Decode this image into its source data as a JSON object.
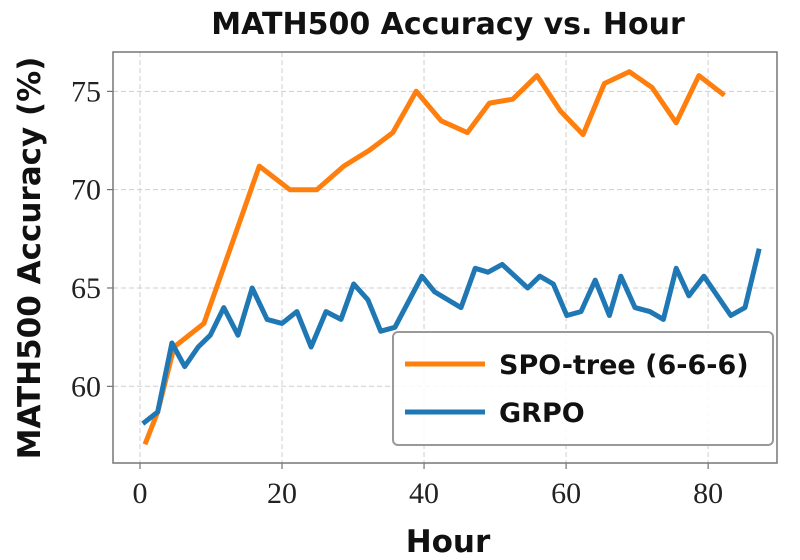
{
  "chart_data": {
    "type": "line",
    "title": "MATH500 Accuracy vs. Hour",
    "xlabel": "Hour",
    "ylabel": "MATH500 Accuracy (%)",
    "xlim": [
      -3.8,
      89.7
    ],
    "ylim": [
      56.1,
      77.0
    ],
    "xticks": [
      0,
      20,
      40,
      60,
      80
    ],
    "yticks": [
      60,
      65,
      70,
      75
    ],
    "grid": true,
    "legend": "lower right",
    "series": [
      {
        "name": "SPO-tree (6-6-6)",
        "color": "#ff7f0e",
        "x": [
          0.7,
          2.5,
          4.8,
          9.0,
          13.0,
          16.8,
          21.1,
          24.9,
          28.7,
          32.3,
          35.6,
          38.9,
          42.4,
          46.1,
          49.2,
          52.5,
          55.9,
          59.2,
          62.4,
          65.4,
          68.9,
          72.1,
          75.5,
          78.7,
          82.3
        ],
        "values": [
          57.05,
          58.7,
          62.0,
          63.2,
          67.3,
          71.2,
          70.0,
          70.0,
          71.2,
          72.0,
          72.9,
          75.0,
          73.5,
          72.9,
          74.4,
          74.6,
          75.8,
          74.0,
          72.8,
          75.4,
          76.0,
          75.2,
          73.4,
          75.8,
          74.8
        ]
      },
      {
        "name": "GRPO",
        "color": "#1f77b4",
        "x": [
          0.4,
          2.5,
          4.5,
          6.3,
          8.2,
          9.9,
          11.8,
          13.8,
          15.8,
          17.9,
          20.0,
          22.1,
          24.1,
          26.2,
          28.3,
          30.1,
          32.1,
          33.9,
          35.9,
          39.7,
          41.5,
          45.2,
          47.2,
          49.0,
          51.0,
          54.6,
          56.3,
          58.2,
          60.1,
          62.1,
          64.1,
          66.1,
          67.7,
          69.7,
          71.8,
          73.7,
          75.5,
          77.3,
          79.4,
          83.2,
          85.2,
          87.2
        ],
        "values": [
          58.1,
          58.7,
          62.2,
          61.0,
          62.0,
          62.6,
          64.0,
          62.6,
          65.0,
          63.4,
          63.2,
          63.8,
          62.0,
          63.8,
          63.4,
          65.2,
          64.4,
          62.8,
          63.0,
          65.6,
          64.8,
          64.0,
          66.0,
          65.8,
          66.2,
          65.0,
          65.6,
          65.2,
          63.6,
          63.8,
          65.4,
          63.6,
          65.6,
          64.0,
          63.8,
          63.4,
          66.0,
          64.6,
          65.6,
          63.6,
          64.0,
          67.0
        ]
      }
    ]
  }
}
